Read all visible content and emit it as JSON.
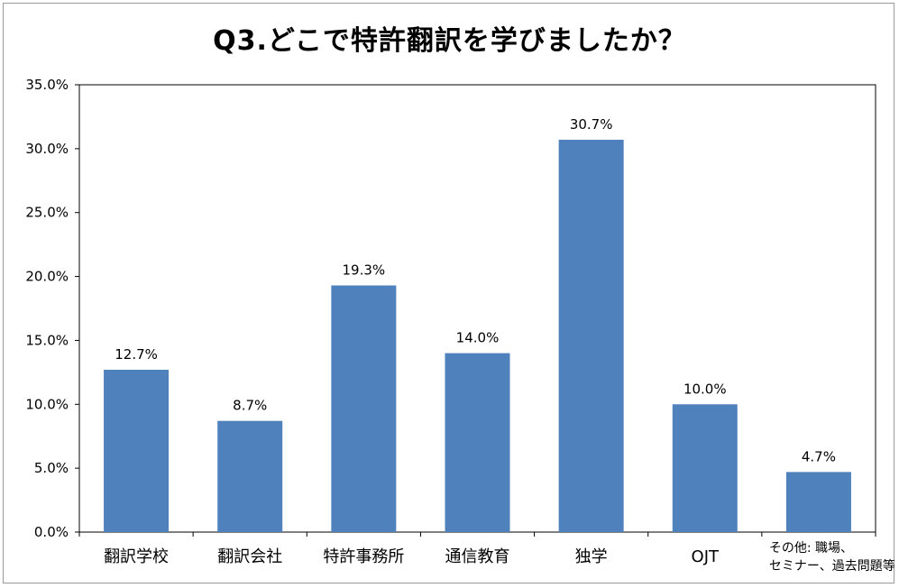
{
  "chart_data": {
    "type": "bar",
    "title": "Q3.どこで特許翻訳を学びましたか？",
    "xlabel": "",
    "ylabel": "",
    "categories": [
      "翻訳学校",
      "翻訳会社",
      "特許事務所",
      "通信教育",
      "独学",
      "OJT",
      "その他: 職場、セミナー、過去問題等"
    ],
    "category_lines": [
      [
        "翻訳学校"
      ],
      [
        "翻訳会社"
      ],
      [
        "特許事務所"
      ],
      [
        "通信教育"
      ],
      [
        "独学"
      ],
      [
        "OJT"
      ],
      [
        "その他: 職場、",
        "セミナー、過去問題等"
      ]
    ],
    "values": [
      12.7,
      8.7,
      19.3,
      14.0,
      30.7,
      10.0,
      4.7
    ],
    "data_labels": [
      "12.7%",
      "8.7%",
      "19.3%",
      "14.0%",
      "30.7%",
      "10.0%",
      "4.7%"
    ],
    "ylim": [
      0,
      35
    ],
    "yticks": [
      0,
      5,
      10,
      15,
      20,
      25,
      30,
      35
    ],
    "ytick_labels": [
      "0.0%",
      "5.0%",
      "10.0%",
      "15.0%",
      "20.0%",
      "25.0%",
      "30.0%",
      "35.0%"
    ],
    "grid": false,
    "legend": "none",
    "bar_color": "#4f81bd"
  }
}
